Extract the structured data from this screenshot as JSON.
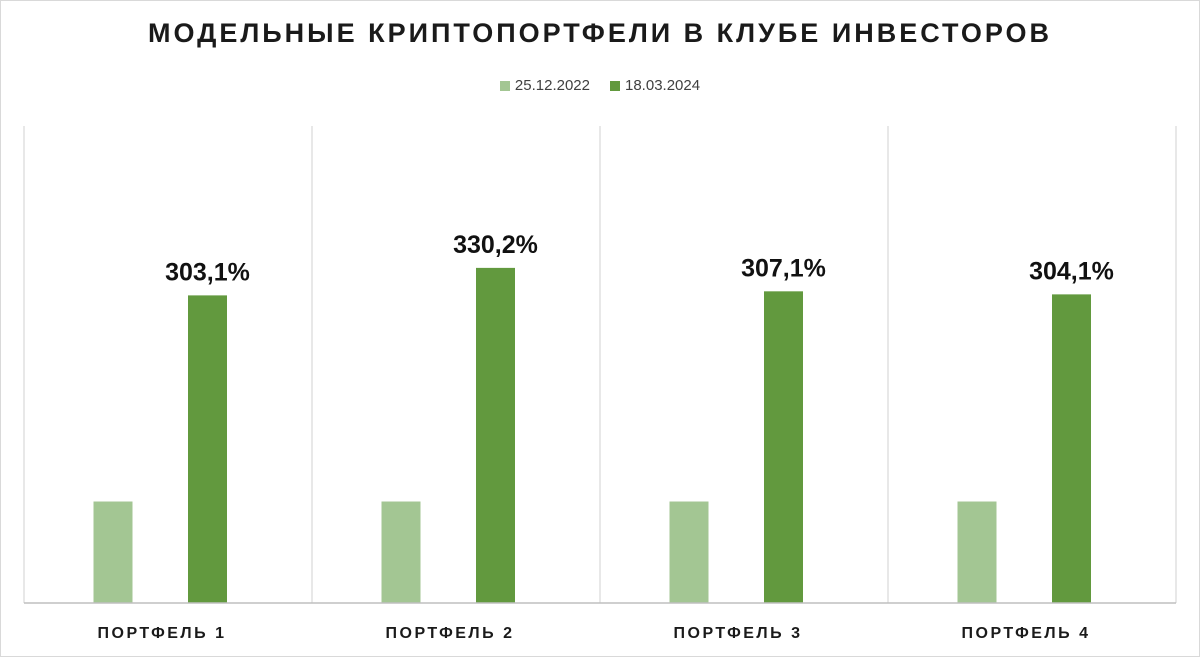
{
  "chart_data": {
    "type": "bar",
    "title": "МОДЕЛЬНЫЕ КРИПТОПОРТФЕЛИ В КЛУБЕ ИНВЕСТОРОВ",
    "xlabel": "",
    "ylabel": "",
    "categories": [
      "ПОРТФЕЛЬ 1",
      "ПОРТФЕЛЬ 2",
      "ПОРТФЕЛЬ 3",
      "ПОРТФЕЛЬ 4"
    ],
    "series": [
      {
        "name": "25.12.2022",
        "values": [
          100,
          100,
          100,
          100
        ],
        "color": "#a3c693",
        "data_labels": [
          "",
          "",
          "",
          ""
        ]
      },
      {
        "name": "18.03.2024",
        "values": [
          303.1,
          330.2,
          307.1,
          304.1
        ],
        "color": "#62993e",
        "data_labels": [
          "303,1%",
          "330,2%",
          "307,1%",
          "304,1%"
        ]
      }
    ],
    "ylim": [
      0,
      470
    ],
    "grid": false,
    "category_separators": true,
    "legend_position": "top"
  }
}
